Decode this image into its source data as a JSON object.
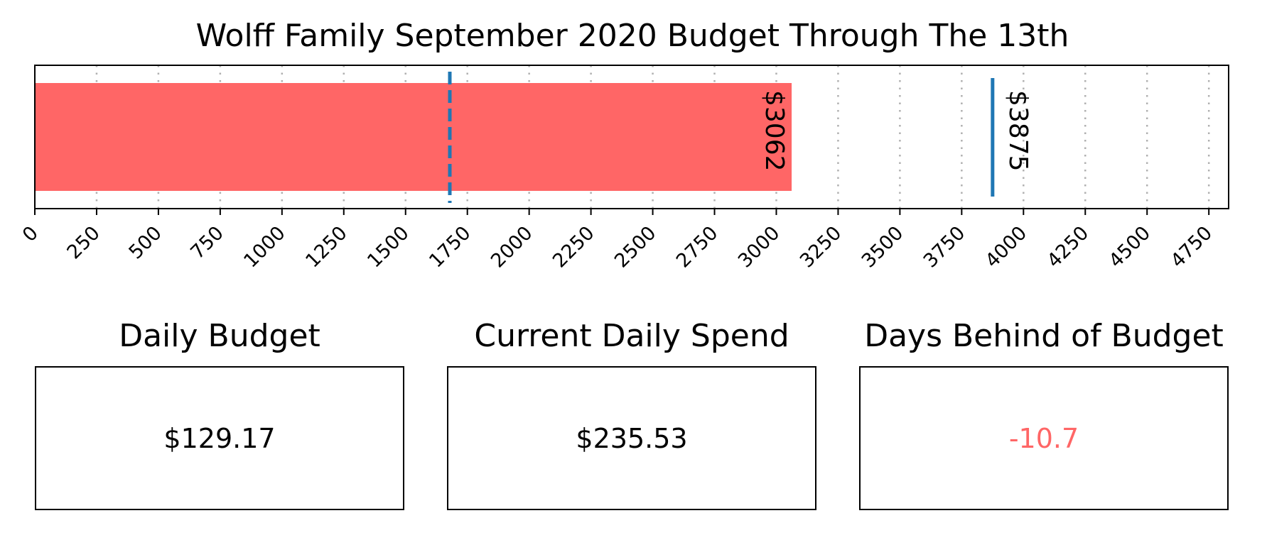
{
  "chart_data": {
    "type": "bar",
    "orientation": "horizontal",
    "title": "Wolff Family September 2020 Budget Through The 13th",
    "xlim": [
      0,
      4830
    ],
    "x_ticks": [
      0,
      250,
      500,
      750,
      1000,
      1250,
      1500,
      1750,
      2000,
      2250,
      2500,
      2750,
      3000,
      3250,
      3500,
      3750,
      4000,
      4250,
      4500,
      4750
    ],
    "grid": "vertical dotted",
    "bar": {
      "value": 3062,
      "label": "$3062",
      "color": "#ff6666"
    },
    "budget_line": {
      "value": 3875,
      "label": "$3875",
      "color": "#1f77b4",
      "style": "solid"
    },
    "expected_line": {
      "value": 1679,
      "color": "#1f77b4",
      "style": "dashed"
    }
  },
  "panels": [
    {
      "title": "Daily Budget",
      "value": "$129.17",
      "color": "#000000"
    },
    {
      "title": "Current Daily Spend",
      "value": "$235.53",
      "color": "#000000"
    },
    {
      "title": "Days Behind of Budget",
      "value": "-10.7",
      "color": "#ff6666"
    }
  ]
}
